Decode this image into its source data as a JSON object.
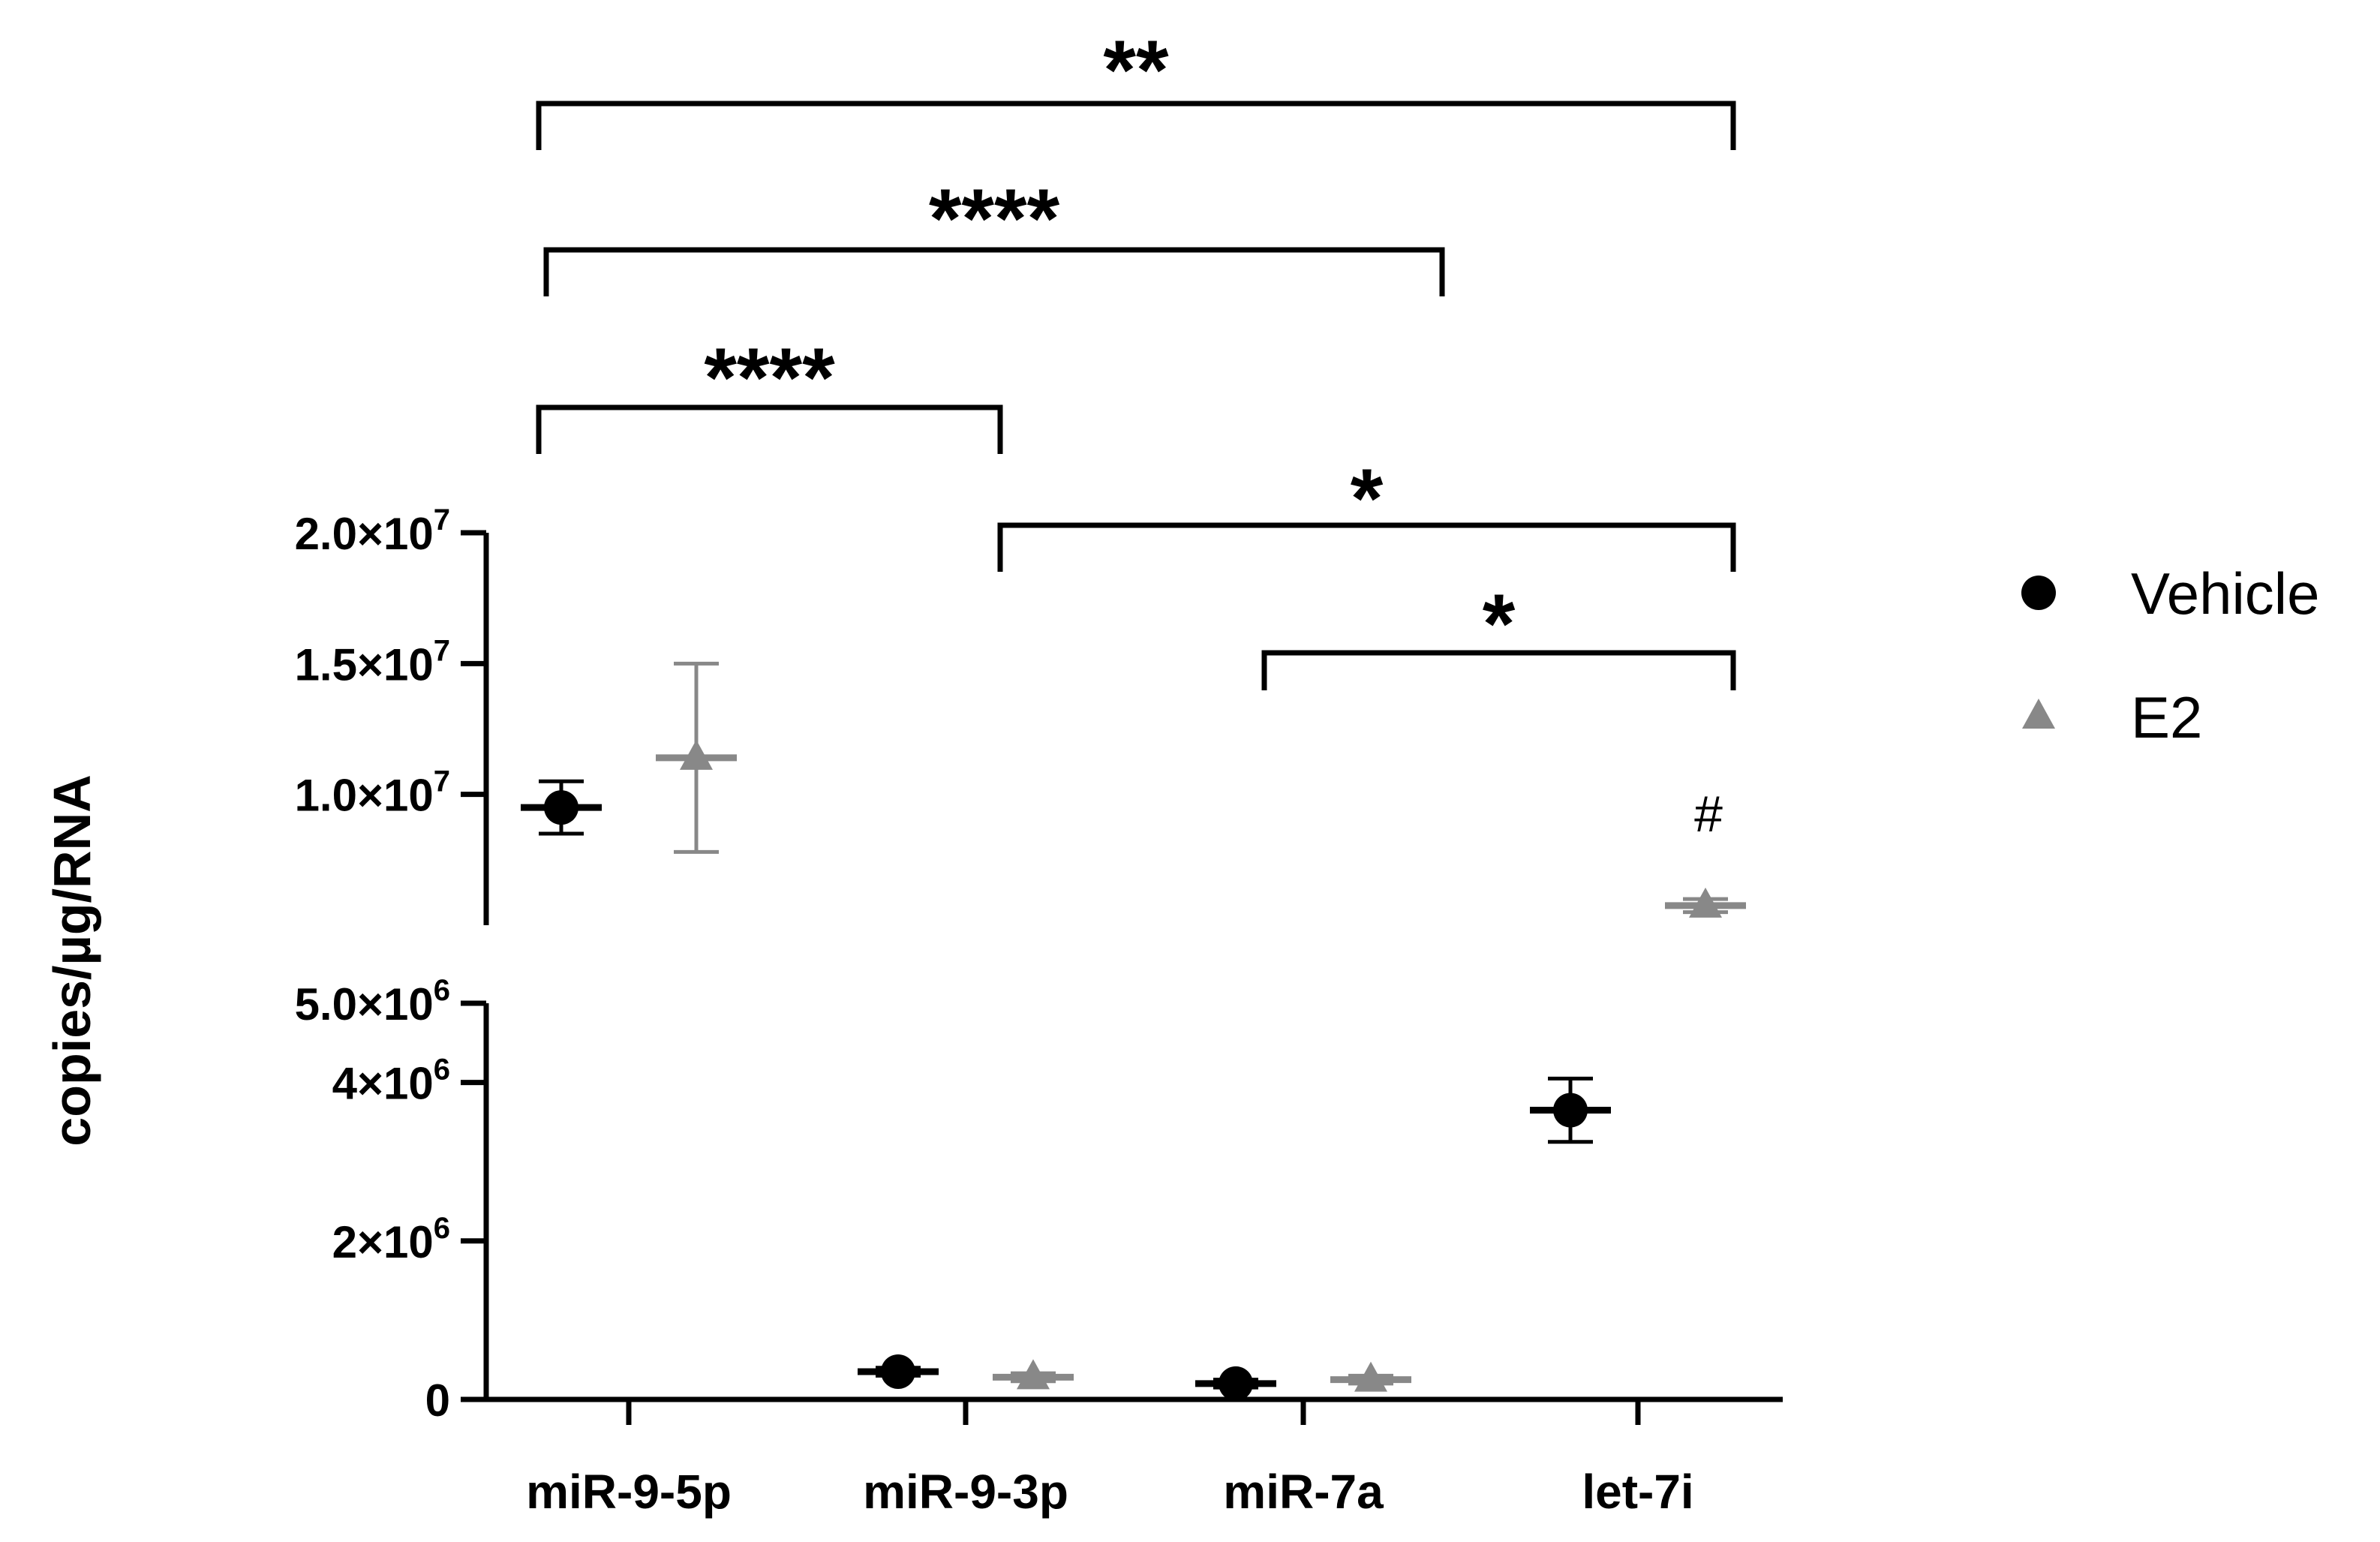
{
  "chart_data": {
    "type": "scatter",
    "ylabel": "copies/µg/RNA",
    "categories": [
      "miR-9-5p",
      "miR-9-3p",
      "miR-7a",
      "let-7i"
    ],
    "y_axis": {
      "broken": true,
      "lower_segment": {
        "range": [
          0,
          5000000
        ],
        "ticks": [
          {
            "value": 0,
            "mantissa": "0",
            "exp": ""
          },
          {
            "value": 2000000,
            "mantissa": "2×10",
            "exp": "6"
          },
          {
            "value": 4000000,
            "mantissa": "4×10",
            "exp": "6"
          }
        ]
      },
      "upper_segment": {
        "range": [
          5000000,
          20000000
        ],
        "ticks": [
          {
            "value": 5000000,
            "mantissa": "5.0×10",
            "exp": "6"
          },
          {
            "value": 10000000,
            "mantissa": "1.0×10",
            "exp": "7"
          },
          {
            "value": 15000000,
            "mantissa": "1.5×10",
            "exp": "7"
          },
          {
            "value": 20000000,
            "mantissa": "2.0×10",
            "exp": "7"
          }
        ]
      }
    },
    "series": [
      {
        "name": "Vehicle",
        "marker": "circle",
        "color": "#000000",
        "values": [
          9500000,
          350000,
          200000,
          3650000
        ],
        "err_low": [
          8500000,
          300000,
          150000,
          3250000
        ],
        "err_high": [
          10500000,
          400000,
          250000,
          4050000
        ]
      },
      {
        "name": "E2",
        "marker": "triangle",
        "color": "#888888",
        "values": [
          11400000,
          280000,
          250000,
          5750000
        ],
        "err_low": [
          7800000,
          230000,
          200000,
          5500000
        ],
        "err_high": [
          15000000,
          330000,
          300000,
          6000000
        ]
      }
    ],
    "annotations": {
      "brackets": [
        {
          "from": "miR-9-5p",
          "to": "let-7i",
          "label": "**"
        },
        {
          "from": "miR-9-5p",
          "to": "miR-7a",
          "label": "****"
        },
        {
          "from": "miR-9-5p",
          "to": "miR-9-3p",
          "label": "****"
        },
        {
          "from": "miR-9-3p",
          "to": "let-7i",
          "label": "*"
        },
        {
          "from": "miR-7a",
          "to": "let-7i",
          "label": "*"
        }
      ],
      "marks": [
        {
          "category": "let-7i",
          "series": "E2",
          "label": "#"
        }
      ]
    },
    "legend": {
      "placement": "right",
      "entries": [
        "Vehicle",
        "E2"
      ]
    }
  }
}
